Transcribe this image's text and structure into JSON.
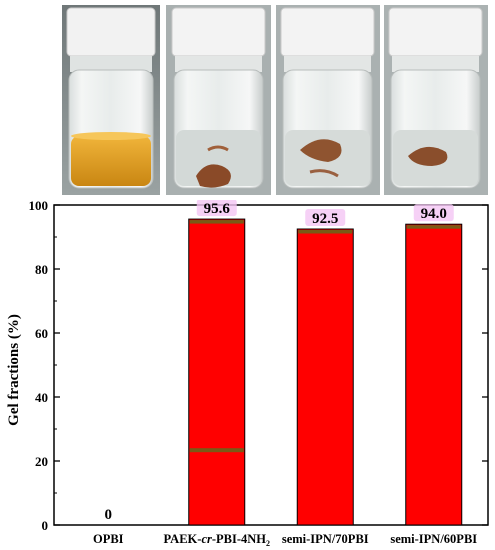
{
  "photo_panel": {
    "vials": [
      {
        "content": "orange-yellow solution",
        "liquid_color": "#e0a21a"
      },
      {
        "content": "swollen gel piece",
        "liquid_color": "#c9d2cf"
      },
      {
        "content": "swollen gel piece",
        "liquid_color": "#cdd5d2"
      },
      {
        "content": "swollen gel piece",
        "liquid_color": "#ced6d3"
      }
    ]
  },
  "chart_data": {
    "type": "bar",
    "categories": [
      "OPBI",
      "PAEK-cr-PBI-4NH2",
      "semi-IPN/70PBI",
      "semi-IPN/60PBI"
    ],
    "category_labels": [
      {
        "text": "OPBI",
        "italic_part": "",
        "suffix": "",
        "sub": ""
      },
      {
        "text": "PAEK-",
        "italic_part": "cr",
        "suffix": "-PBI-4NH",
        "sub": "2"
      },
      {
        "text": "semi-IPN/70PBI",
        "italic_part": "",
        "suffix": "",
        "sub": ""
      },
      {
        "text": "semi-IPN/60PBI",
        "italic_part": "",
        "suffix": "",
        "sub": ""
      }
    ],
    "values": [
      0,
      95.6,
      92.5,
      94.0
    ],
    "value_labels": [
      "0",
      "95.6",
      "92.5",
      "94.0"
    ],
    "ylabel": "Gel fractions (%)",
    "xlabel": "",
    "ylim": [
      0,
      100
    ],
    "yticks": [
      "0",
      "20",
      "40",
      "60",
      "80",
      "100"
    ],
    "grid": false,
    "colors": {
      "bar_fill": "#ff0000",
      "bar_stripe": "#7a5a16",
      "value_label_highlight": "#f4c6f4"
    }
  }
}
